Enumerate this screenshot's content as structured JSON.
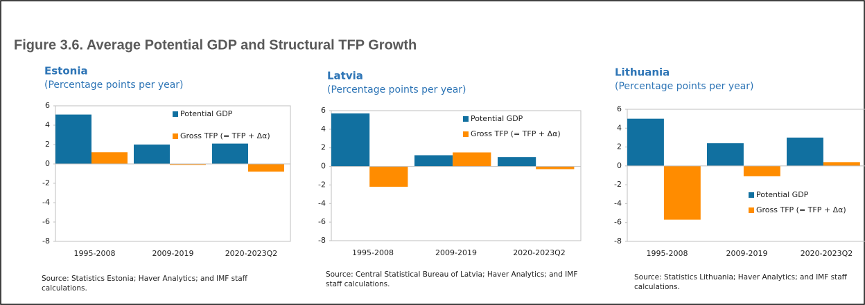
{
  "title": "Figure 3.6. Average Potential GDP and Structural TFP Growth",
  "chart_data": [
    {
      "type": "bar",
      "title": "Estonia",
      "subtitle": "(Percentage points per year)",
      "categories": [
        "1995-2008",
        "2009-2019",
        "2020-2023Q2"
      ],
      "series": [
        {
          "name": "Potential GDP",
          "color": "#1170a0",
          "values": [
            5.1,
            2.0,
            2.1
          ]
        },
        {
          "name": "Gross TFP (= TFP + Δα)",
          "color": "#ff8c00",
          "values": [
            1.2,
            -0.1,
            -0.8
          ]
        }
      ],
      "ylim": [
        -8,
        6
      ],
      "yticks": [
        -8,
        -6,
        -4,
        -2,
        0,
        2,
        4,
        6
      ],
      "legend": "upper right",
      "note": "Source: Statistics Estonia; Haver Analytics; and IMF staff calculations."
    },
    {
      "type": "bar",
      "title": "Latvia",
      "subtitle": "(Percentage points per year)",
      "categories": [
        "1995-2008",
        "2009-2019",
        "2020-2023Q2"
      ],
      "series": [
        {
          "name": "Potential GDP",
          "color": "#1170a0",
          "values": [
            5.7,
            1.2,
            1.0
          ]
        },
        {
          "name": "Gross TFP (= TFP + Δα)",
          "color": "#ff8c00",
          "values": [
            -2.2,
            1.5,
            -0.3
          ]
        }
      ],
      "ylim": [
        -8,
        6
      ],
      "yticks": [
        -8,
        -6,
        -4,
        -2,
        0,
        2,
        4,
        6
      ],
      "legend": "upper right",
      "note": "Source: Central Statistical Bureau of Latvia; Haver Analytics; and IMF staff calculations."
    },
    {
      "type": "bar",
      "title": "Lithuania",
      "subtitle": "(Percentage points per year)",
      "categories": [
        "1995-2008",
        "2009-2019",
        "2020-2023Q2"
      ],
      "series": [
        {
          "name": "Potential GDP",
          "color": "#1170a0",
          "values": [
            5.0,
            2.4,
            3.0
          ]
        },
        {
          "name": "Gross TFP (= TFP + Δα)",
          "color": "#ff8c00",
          "values": [
            -5.7,
            -1.1,
            0.4
          ]
        }
      ],
      "ylim": [
        -8,
        6
      ],
      "yticks": [
        -8,
        -6,
        -4,
        -2,
        0,
        2,
        4,
        6
      ],
      "legend": "lower right",
      "note": "Source: Statistics Lithuania; Haver Analytics; and IMF staff calculations."
    }
  ]
}
